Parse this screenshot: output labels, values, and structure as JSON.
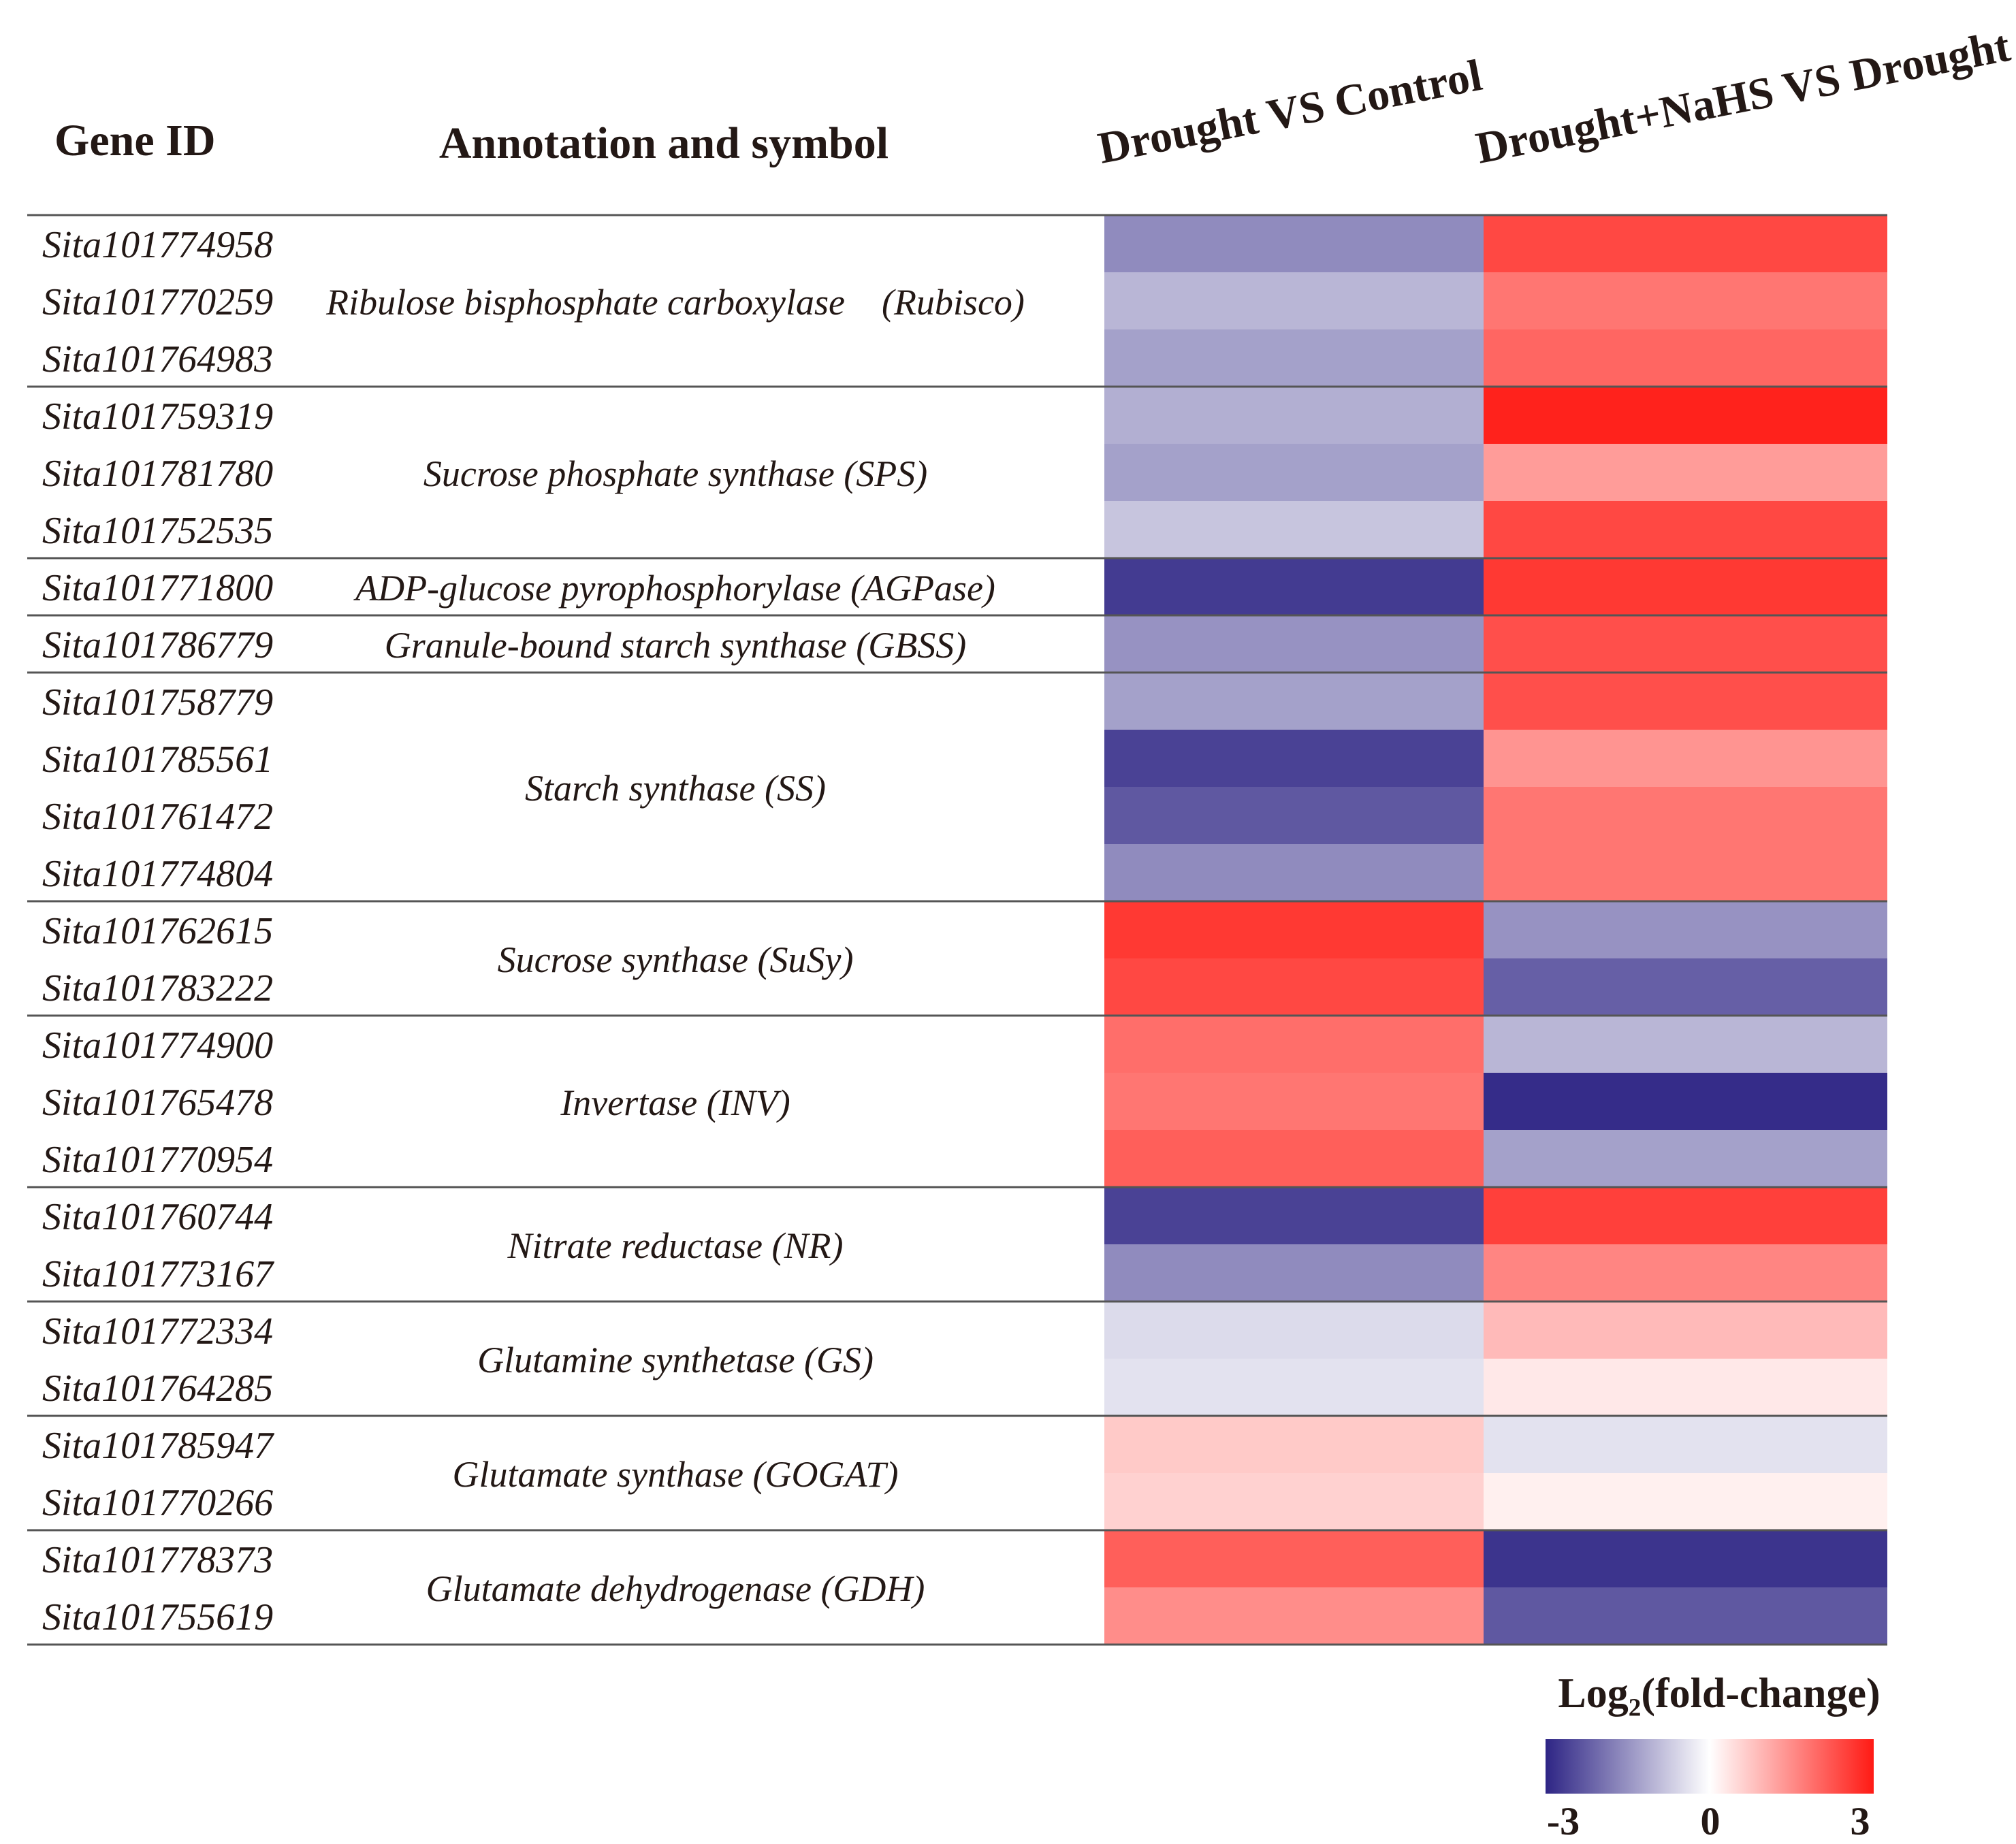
{
  "headers": {
    "gene_id": "Gene ID",
    "annotation": "Annotation and symbol"
  },
  "chart_data": {
    "type": "heatmap",
    "columns": [
      "Drought VS Control",
      "Drought+NaHS VS Drought"
    ],
    "value_label": "Log₂(fold-change)",
    "color_scale": {
      "min": -3,
      "mid": 0,
      "max": 3,
      "low_color": "#2e2585",
      "mid_color": "#ffffff",
      "high_color": "#ff1a14"
    },
    "legend_ticks": [
      "-3",
      "0",
      "3"
    ],
    "groups": [
      {
        "annotation": "Ribulose bisphosphate carboxylase (Rubisco)",
        "genes": [
          "Sita101774958",
          "Sita101770259",
          "Sita101764983"
        ]
      },
      {
        "annotation": "Sucrose phosphate synthase (SPS)",
        "genes": [
          "Sita101759319",
          "Sita101781780",
          "Sita101752535"
        ]
      },
      {
        "annotation": "ADP-glucose pyrophosphorylase (AGPase)",
        "genes": [
          "Sita101771800"
        ]
      },
      {
        "annotation": "Granule-bound starch synthase (GBSS)",
        "genes": [
          "Sita101786779"
        ]
      },
      {
        "annotation": "Starch synthase (SS)",
        "genes": [
          "Sita101758779",
          "Sita101785561",
          "Sita101761472",
          "Sita101774804"
        ]
      },
      {
        "annotation": "Sucrose synthase (SuSy)",
        "genes": [
          "Sita101762615",
          "Sita101783222"
        ]
      },
      {
        "annotation": "Invertase (INV)",
        "genes": [
          "Sita101774900",
          "Sita101765478",
          "Sita101770954"
        ]
      },
      {
        "annotation": "Nitrate reductase (NR)",
        "genes": [
          "Sita101760744",
          "Sita101773167"
        ]
      },
      {
        "annotation": "Glutamine synthetase (GS)",
        "genes": [
          "Sita101772334",
          "Sita101764285"
        ]
      },
      {
        "annotation": "Glutamate synthase (GOGAT)",
        "genes": [
          "Sita101785947",
          "Sita101770266"
        ]
      },
      {
        "annotation": "Glutamate dehydrogenase (GDH)",
        "genes": [
          "Sita101778373",
          "Sita101755619"
        ]
      }
    ],
    "values": [
      [
        -1.6,
        2.4
      ],
      [
        -1.0,
        1.8
      ],
      [
        -1.3,
        2.0
      ],
      [
        -1.1,
        2.9
      ],
      [
        -1.3,
        1.3
      ],
      [
        -0.8,
        2.4
      ],
      [
        -2.7,
        2.6
      ],
      [
        -1.5,
        2.3
      ],
      [
        -1.3,
        2.3
      ],
      [
        -2.6,
        1.4
      ],
      [
        -2.3,
        1.8
      ],
      [
        -1.6,
        1.8
      ],
      [
        2.6,
        -1.5
      ],
      [
        2.4,
        -2.2
      ],
      [
        1.9,
        -1.0
      ],
      [
        1.8,
        -2.9
      ],
      [
        2.1,
        -1.3
      ],
      [
        -2.6,
        2.5
      ],
      [
        -1.6,
        1.6
      ],
      [
        -0.5,
        0.9
      ],
      [
        -0.4,
        0.3
      ],
      [
        0.7,
        -0.4
      ],
      [
        0.6,
        0.2
      ],
      [
        2.1,
        -2.8
      ],
      [
        1.5,
        -2.3
      ]
    ]
  }
}
